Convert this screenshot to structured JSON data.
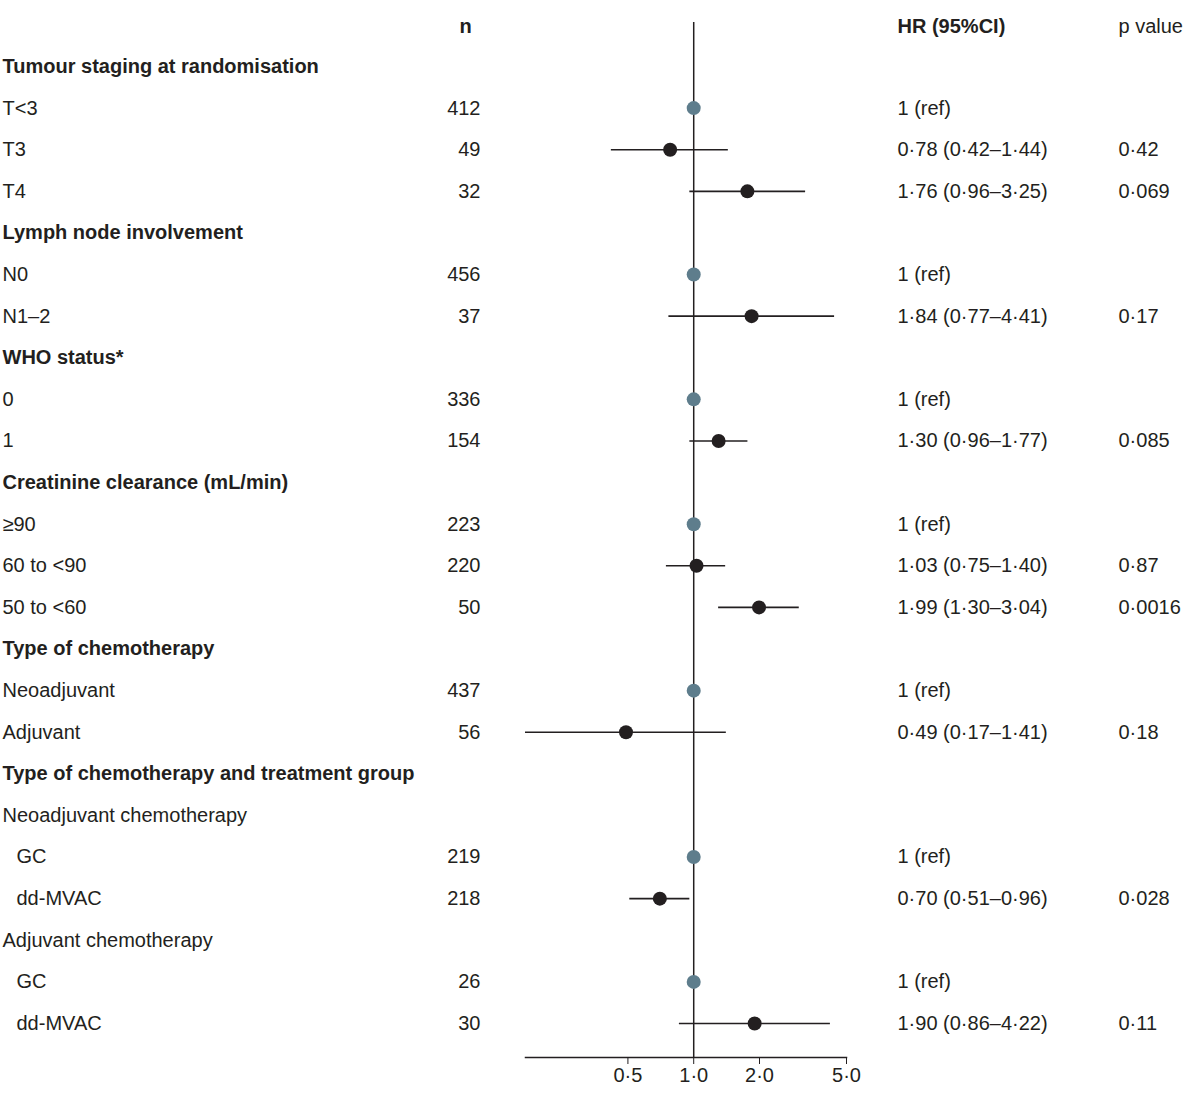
{
  "chart_data": {
    "type": "forest",
    "columns": {
      "n": "n",
      "estimate": "HR (95%CI)",
      "p": "p value"
    },
    "log": "x",
    "xlim": [
      0.17,
      5
    ],
    "xticks": [
      {
        "value": 0.5,
        "label": "0·5"
      },
      {
        "value": 1,
        "label": "1·0"
      },
      {
        "value": 2,
        "label": "2·0"
      },
      {
        "value": 5,
        "label": "5·0"
      }
    ],
    "color": "#231f20",
    "groups": [
      {
        "title": "Tumour staging at randomisation",
        "rows": [
          {
            "label": "T<3",
            "n": 412,
            "hr": 1,
            "hr_label": "1 (ref)",
            "color": "#5e7d8c"
          },
          {
            "label": "T3",
            "n": 49,
            "hr": 0.78,
            "ci_low": 0.42,
            "ci_high": 1.44,
            "hr_label": "0·78 (0·42–1·44)",
            "p": 0.42,
            "p_label": "0·42"
          },
          {
            "label": "T4",
            "n": 32,
            "hr": 1.76,
            "ci_low": 0.96,
            "ci_high": 3.25,
            "hr_label": "1·76 (0·96–3·25)",
            "p": 0.069,
            "p_label": "0·069"
          }
        ]
      },
      {
        "title": "Lymph node involvement",
        "rows": [
          {
            "label": "N0",
            "n": 456,
            "hr": 1,
            "hr_label": "1 (ref)",
            "color": "#5e7d8c"
          },
          {
            "label": "N1–2",
            "n": 37,
            "hr": 1.84,
            "ci_low": 0.77,
            "ci_high": 4.41,
            "hr_label": "1·84 (0·77–4·41)",
            "p": 0.17,
            "p_label": "0·17"
          }
        ]
      },
      {
        "title": "WHO status*",
        "rows": [
          {
            "label": "0",
            "n": 336,
            "hr": 1,
            "hr_label": "1 (ref)",
            "color": "#5e7d8c"
          },
          {
            "label": "1",
            "n": 154,
            "hr": 1.3,
            "ci_low": 0.96,
            "ci_high": 1.77,
            "hr_label": "1·30 (0·96–1·77)",
            "p": 0.085,
            "p_label": "0·085"
          }
        ]
      },
      {
        "title": "Creatinine clearance (mL/min)",
        "rows": [
          {
            "label": "≥90",
            "n": 223,
            "hr": 1,
            "hr_label": "1 (ref)",
            "color": "#5e7d8c"
          },
          {
            "label": "60 to <90",
            "n": 220,
            "hr": 1.03,
            "ci_low": 0.75,
            "ci_high": 1.4,
            "hr_label": "1·03 (0·75–1·40)",
            "p": 0.87,
            "p_label": "0·87"
          },
          {
            "label": "50 to <60",
            "n": 50,
            "hr": 1.99,
            "ci_low": 1.3,
            "ci_high": 3.04,
            "hr_label": "1·99 (1·30–3·04)",
            "p": 0.0016,
            "p_label": "0·0016"
          }
        ]
      },
      {
        "title": "Type of chemotherapy",
        "rows": [
          {
            "label": "Neoadjuvant",
            "n": 437,
            "hr": 1,
            "hr_label": "1 (ref)",
            "color": "#5e7d8c"
          },
          {
            "label": "Adjuvant",
            "n": 56,
            "hr": 0.49,
            "ci_low": 0.17,
            "ci_high": 1.41,
            "hr_label": "0·49 (0·17–1·41)",
            "p": 0.18,
            "p_label": "0·18"
          }
        ]
      },
      {
        "title": "Type of chemotherapy and treatment group",
        "subgroups": [
          {
            "title": "Neoadjuvant chemotherapy",
            "rows": [
              {
                "label": "GC",
                "n": 219,
                "hr": 1,
                "hr_label": "1 (ref)",
                "color": "#5e7d8c"
              },
              {
                "label": "dd-MVAC",
                "n": 218,
                "hr": 0.7,
                "ci_low": 0.51,
                "ci_high": 0.96,
                "hr_label": "0·70 (0·51–0·96)",
                "p": 0.028,
                "p_label": "0·028"
              }
            ]
          },
          {
            "title": "Adjuvant chemotherapy",
            "rows": [
              {
                "label": "GC",
                "n": 26,
                "hr": 1,
                "hr_label": "1 (ref)",
                "color": "#5e7d8c"
              },
              {
                "label": "dd-MVAC",
                "n": 30,
                "hr": 1.9,
                "ci_low": 0.86,
                "ci_high": 4.22,
                "hr_label": "1·90 (0·86–4·22)",
                "p": 0.11,
                "p_label": "0·11"
              }
            ]
          }
        ]
      }
    ]
  }
}
